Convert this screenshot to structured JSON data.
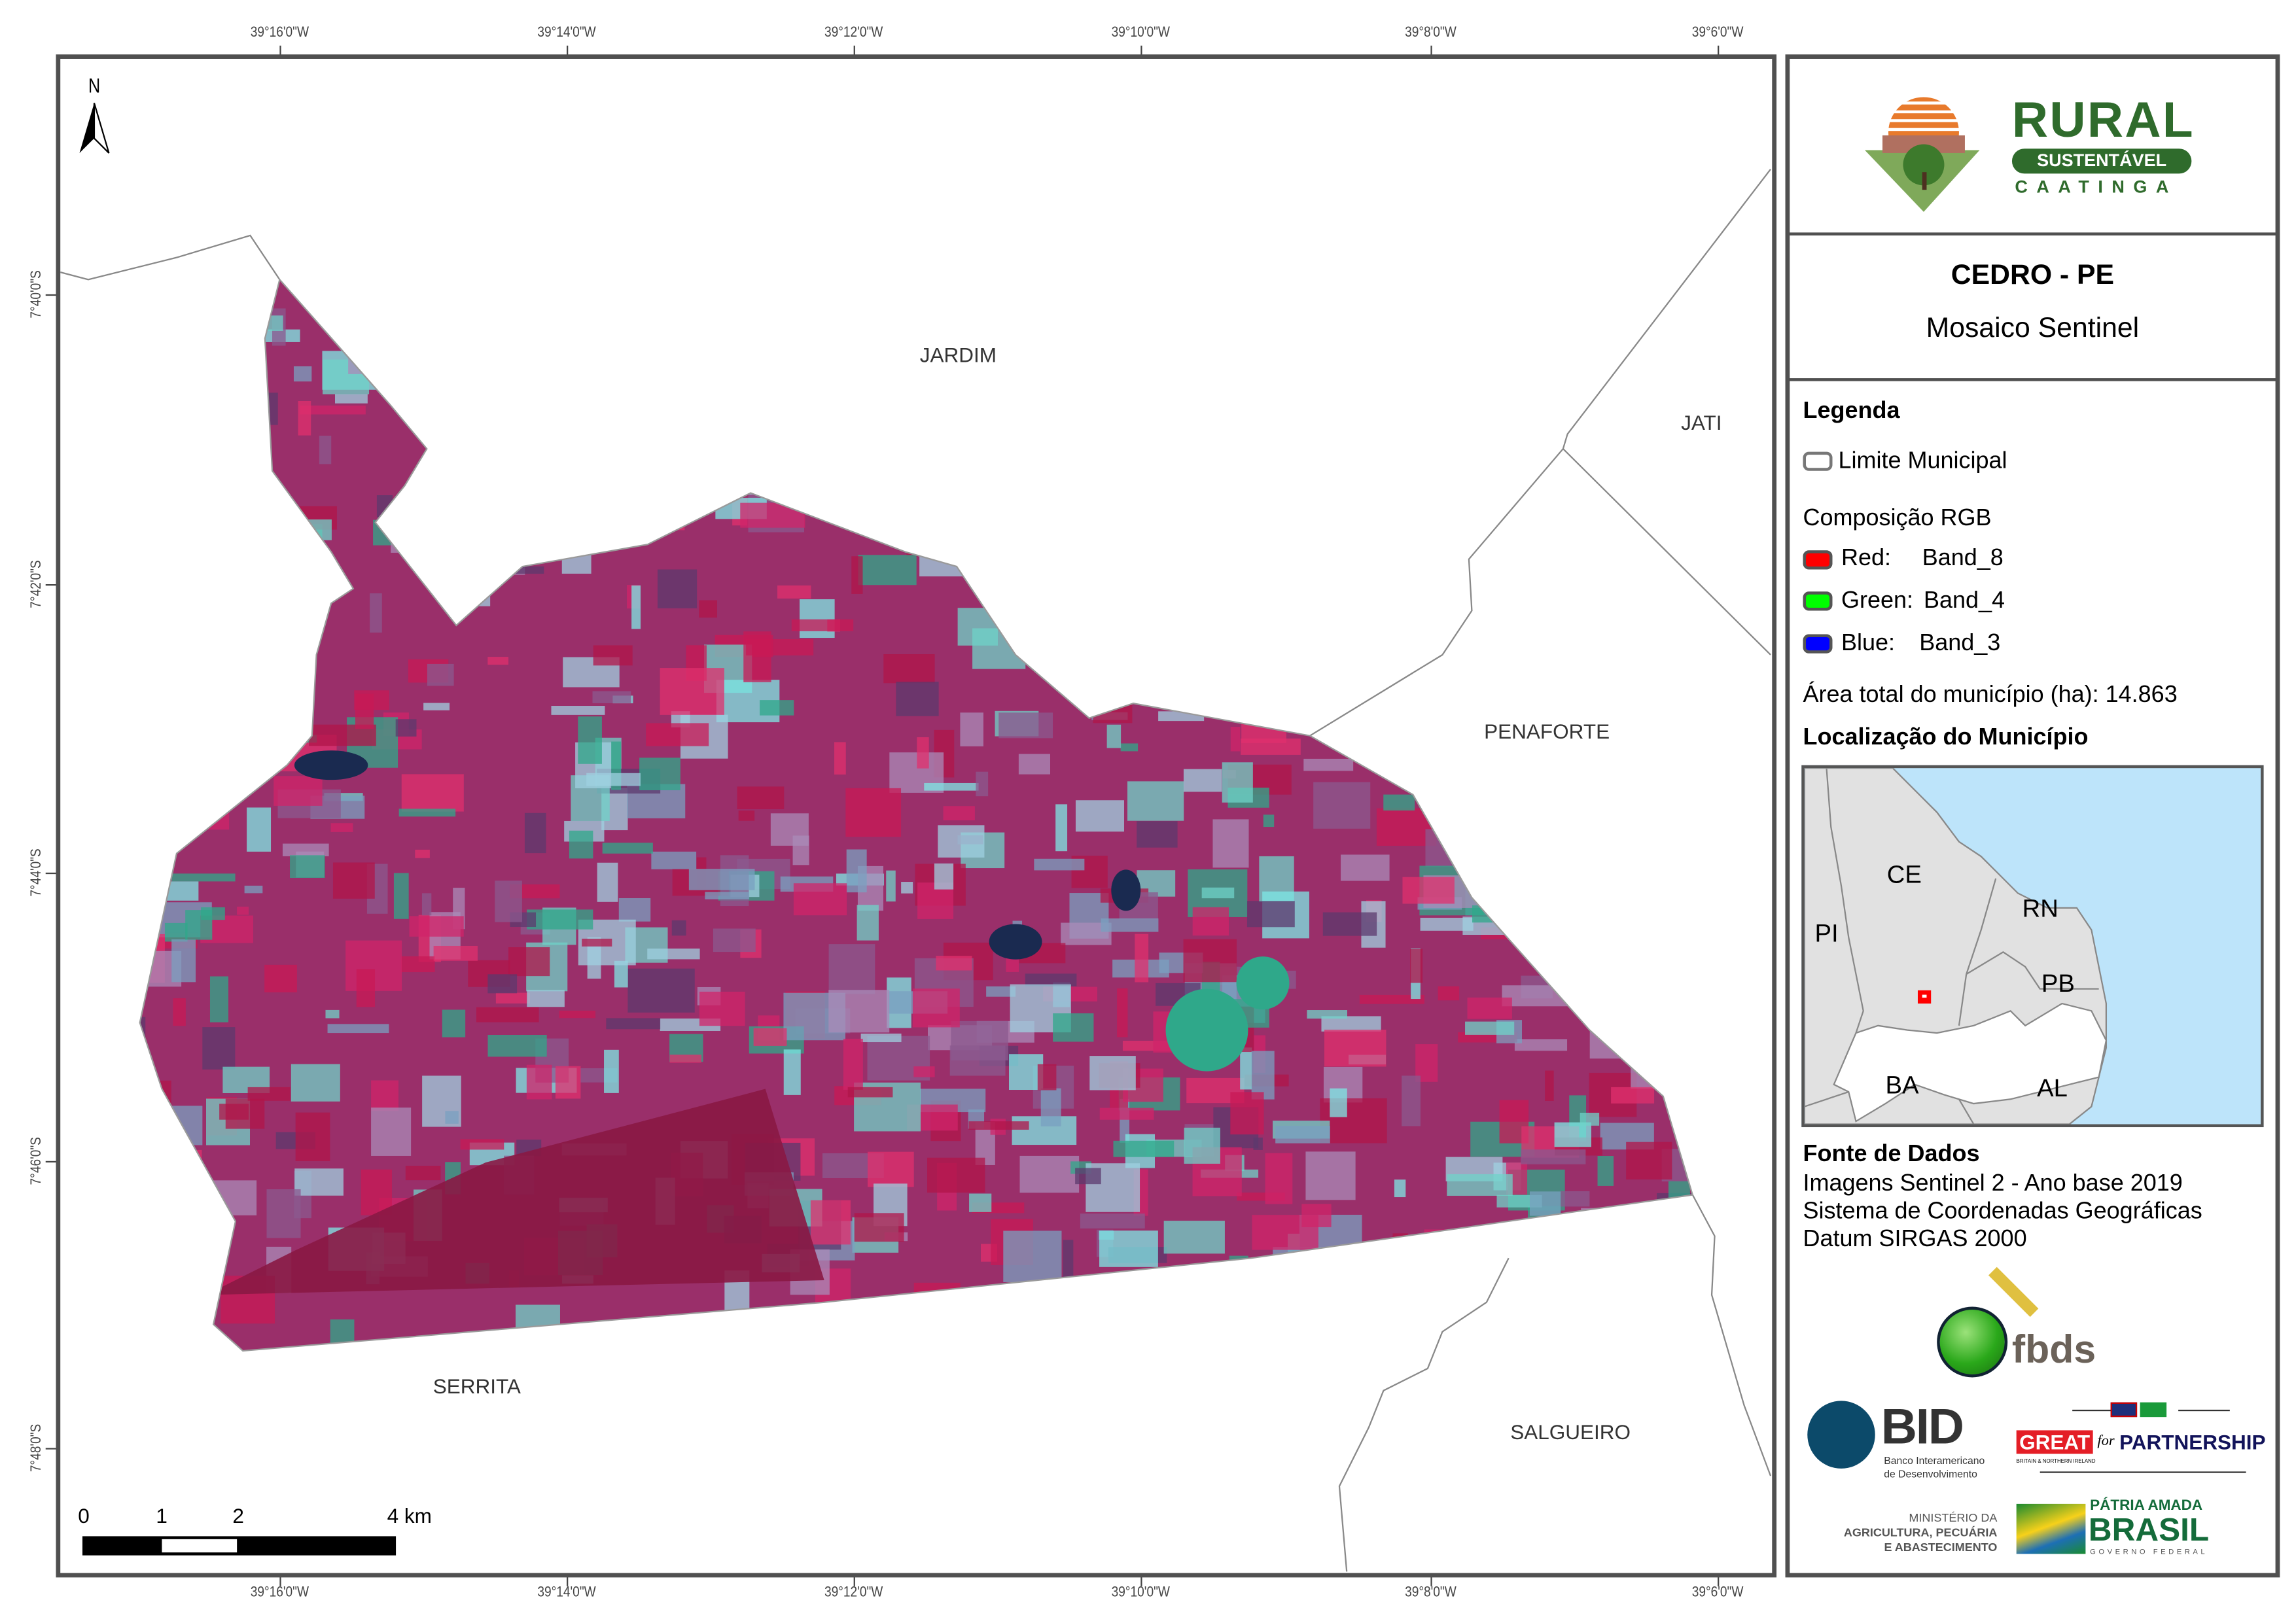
{
  "map": {
    "north_label": "N",
    "top_ticks": [
      "39°16'0\"W",
      "39°14'0\"W",
      "39°12'0\"W",
      "39°10'0\"W",
      "39°8'0\"W",
      "39°6'0\"W"
    ],
    "bottom_ticks": [
      "39°16'0\"W",
      "39°14'0\"W",
      "39°12'0\"W",
      "39°10'0\"W",
      "39°8'0\"W",
      "39°6'0\"W"
    ],
    "left_ticks": [
      "7°40'0\"S",
      "7°42'0\"S",
      "7°44'0\"S",
      "7°46'0\"S",
      "7°48'0\"S"
    ],
    "places": {
      "jardim": "JARDIM",
      "jati": "JATI",
      "penaforte": "PENAFORTE",
      "serrita": "SERRITA",
      "salgueiro": "SALGUEIRO"
    },
    "scale": {
      "l0": "0",
      "l1": "1",
      "l2": "2",
      "l4": "4 km"
    },
    "colors": {
      "vegetation": "#b0164a",
      "bare": "#7ee8e6",
      "frame": "#505050"
    }
  },
  "panel": {
    "logo": {
      "rural": "RURAL",
      "sustentavel": "SUSTENTÁVEL",
      "caatinga": "CAATINGA"
    },
    "title": "CEDRO - PE",
    "subtitle": "Mosaico Sentinel",
    "legend": {
      "heading": "Legenda",
      "limit": "Limite Municipal",
      "rgb_heading": "Composição RGB",
      "red": {
        "label": "Red:",
        "band": "Band_8",
        "color": "#ff0000"
      },
      "green": {
        "label": "Green:",
        "band": "Band_4",
        "color": "#00ff00"
      },
      "blue": {
        "label": "Blue:",
        "band": "Band_3",
        "color": "#0000ff"
      },
      "area": "Área total do município (ha): 14.863"
    },
    "location": {
      "heading": "Localização do Município",
      "states": {
        "ce": "CE",
        "rn": "RN",
        "pi": "PI",
        "pb": "PB",
        "ba": "BA",
        "al": "AL"
      },
      "colors": {
        "sea": "#bde4fa",
        "land": "#e1e1e1",
        "pe": "#ffffff",
        "marker": "#ff0000"
      }
    },
    "sources": {
      "heading": "Fonte de Dados",
      "lines": [
        "Imagens Sentinel 2 - Ano base 2019",
        "Sistema de Coordenadas Geográficas",
        "Datum SIRGAS 2000"
      ]
    },
    "logos": {
      "fbds": "fbds",
      "bid": "BID",
      "bid_sub1": "Banco Interamericano",
      "bid_sub2": "de Desenvolvimento",
      "great": "GREAT",
      "great_for": "for",
      "partnership": "PARTNERSHIP",
      "great_sub": "BRITAIN & NORTHERN IRELAND",
      "ministerio1": "MINISTÉRIO DA",
      "ministerio2": "AGRICULTURA, PECUÁRIA",
      "ministerio3": "E ABASTECIMENTO",
      "patria": "PÁTRIA AMADA",
      "brasil": "BRASIL",
      "governo": "GOVERNO FEDERAL"
    }
  }
}
